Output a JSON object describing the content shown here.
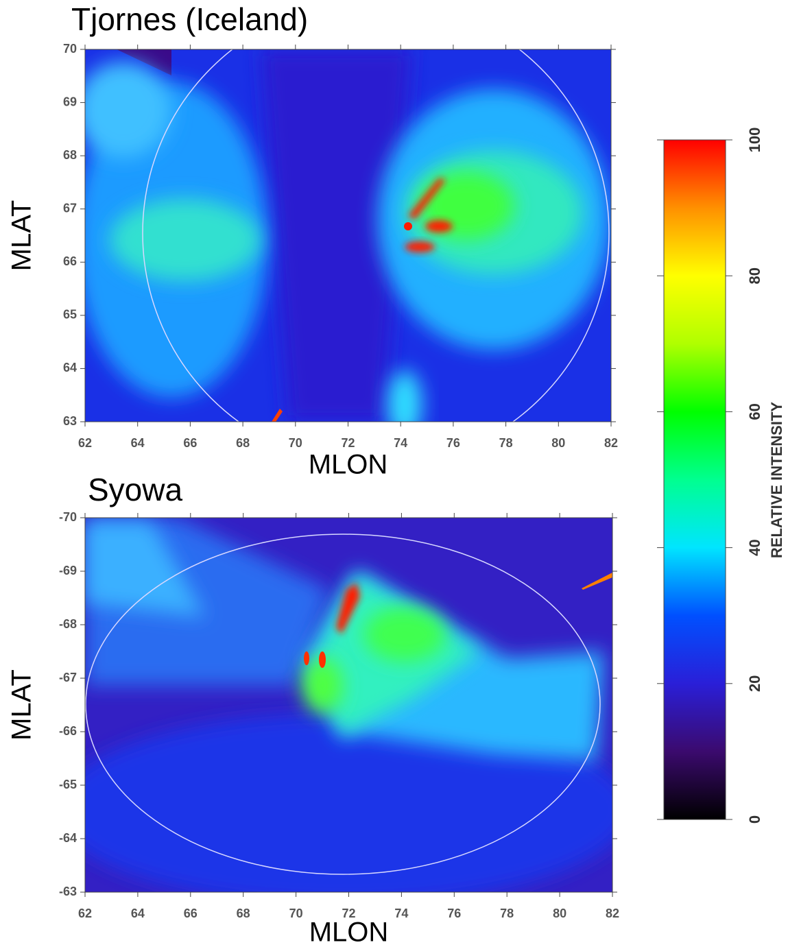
{
  "chart_data": [
    {
      "type": "image",
      "title": "Tjornes (Iceland)",
      "x_label": "MLON",
      "y_label": "MLAT",
      "xlim": [
        62,
        82
      ],
      "ylim": [
        63,
        70
      ],
      "xticks": [
        62,
        64,
        66,
        68,
        70,
        72,
        74,
        76,
        78,
        80,
        82
      ],
      "yticks": [
        63,
        64,
        65,
        66,
        67,
        68,
        69,
        70
      ]
    },
    {
      "type": "image",
      "title": "Syowa",
      "x_label": "MLON",
      "y_label": "MLAT",
      "xlim": [
        62,
        82
      ],
      "ylim": [
        -63,
        -70
      ],
      "xticks": [
        62,
        64,
        66,
        68,
        70,
        72,
        74,
        76,
        78,
        80,
        82
      ],
      "yticks": [
        -63,
        -64,
        -65,
        -66,
        -67,
        -68,
        -69,
        -70
      ]
    },
    {
      "type": "colorbar",
      "label": "RELATIVE INTENSITY",
      "ylim": [
        0,
        100
      ],
      "yticks": [
        0,
        20,
        40,
        60,
        80,
        100
      ],
      "colors": [
        "#000000",
        "#3b0a6e",
        "#2a1fd8",
        "#0050ff",
        "#00e5ff",
        "#00ff90",
        "#00ff00",
        "#b0ff00",
        "#ffff00",
        "#ff9000",
        "#ff0000"
      ]
    }
  ]
}
